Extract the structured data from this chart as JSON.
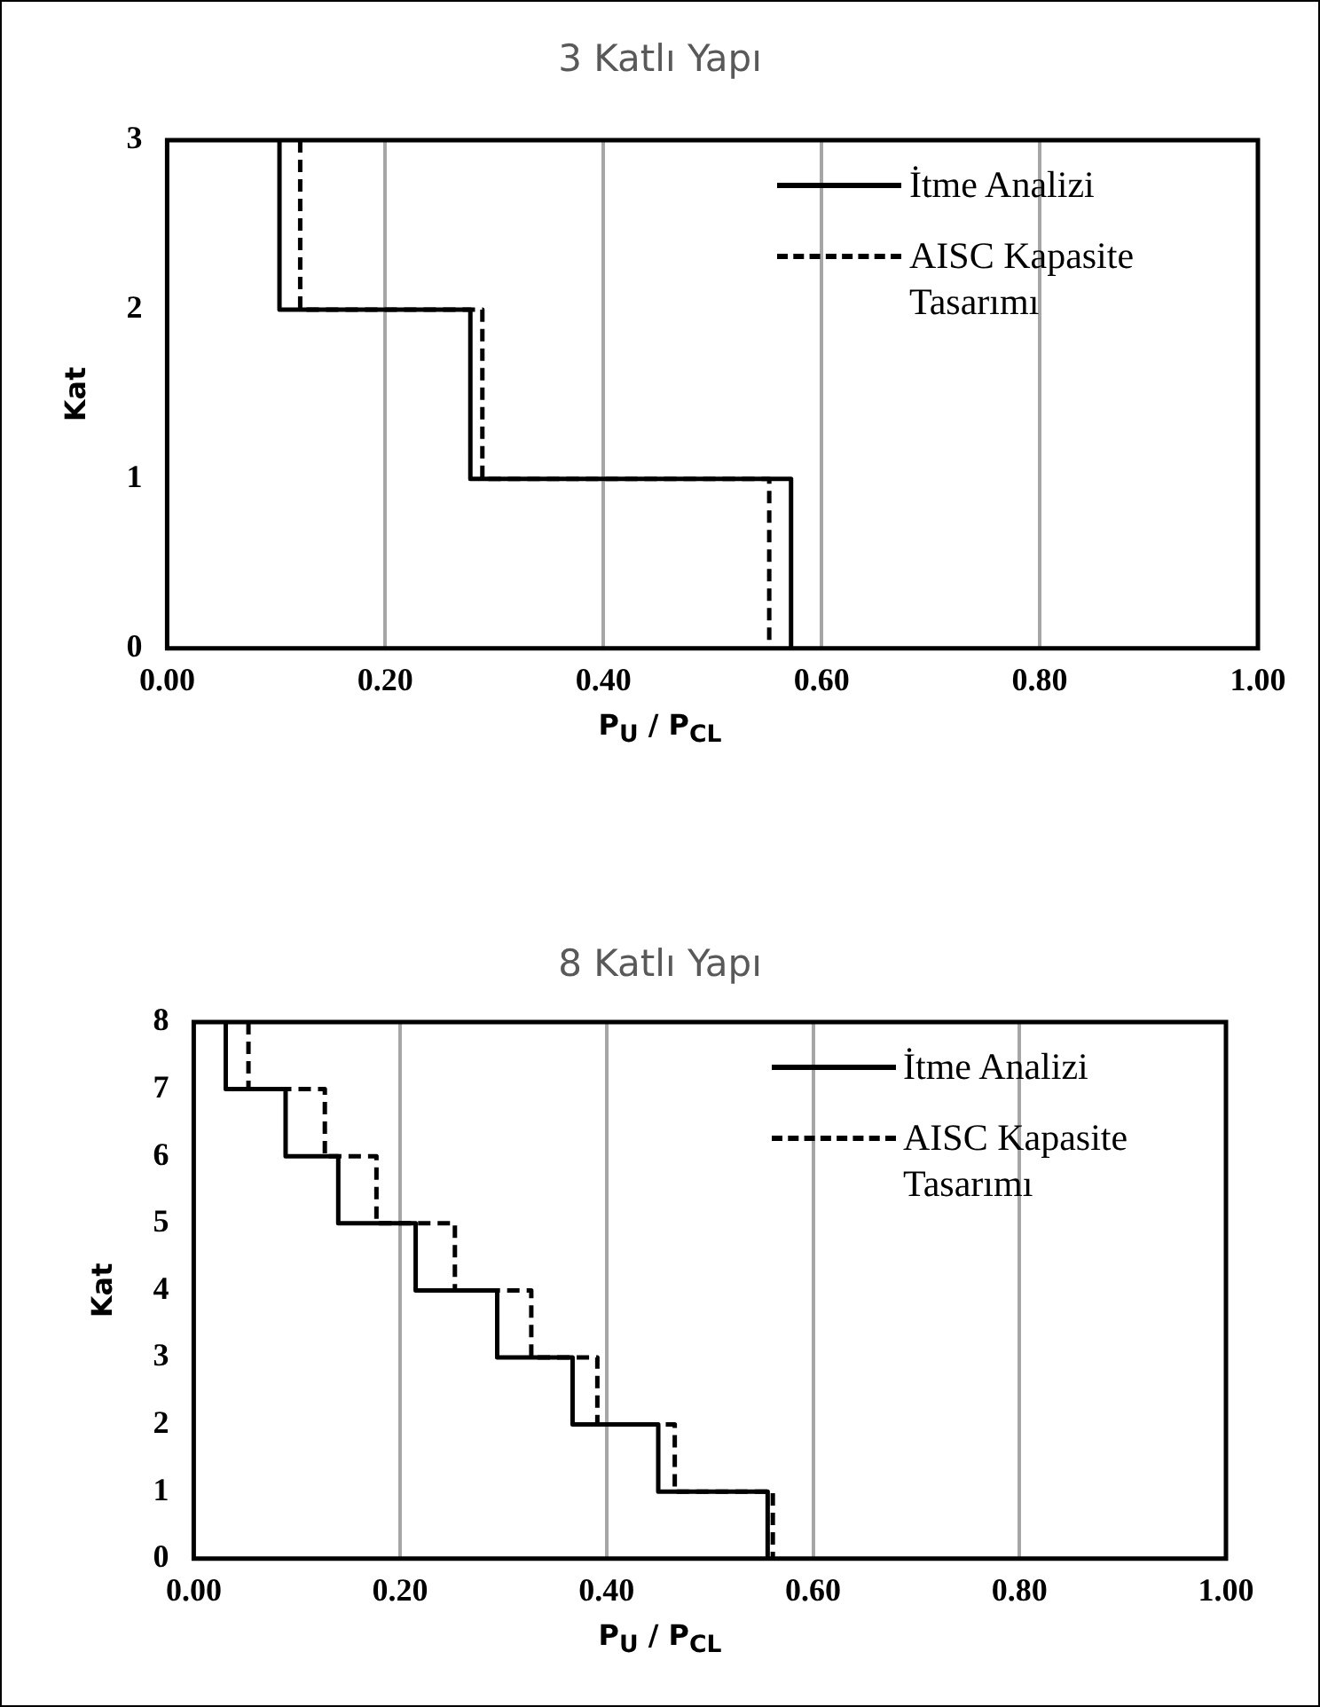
{
  "chart_data": [
    {
      "type": "line",
      "title": "3 Katlı Yapı",
      "xlabel": "P$_{U}$ / P$_{CL}$",
      "ylabel": "Kat",
      "xlim": [
        0,
        1
      ],
      "xticks": [
        {
          "value": 0,
          "label": "0.00"
        },
        {
          "value": 0.2,
          "label": "0.20"
        },
        {
          "value": 0.4,
          "label": "0.40"
        },
        {
          "value": 0.6,
          "label": "0.60"
        },
        {
          "value": 0.8,
          "label": "0.80"
        },
        {
          "value": 1,
          "label": "1.00"
        }
      ],
      "ylim": [
        0,
        3
      ],
      "yticks": [
        0,
        1,
        2,
        3
      ],
      "grid": "x",
      "legend": "top right",
      "marker": "none",
      "series": [
        {
          "name": "İtme Analizi",
          "color": "#000000",
          "line_style": "solid",
          "x": [
            0.103,
            0.103,
            0.278,
            0.278,
            0.572,
            0.572
          ],
          "values": [
            3,
            2,
            2,
            1,
            1,
            0
          ]
        },
        {
          "name": "AISC Kapasite Tasarımı",
          "color": "#000000",
          "line_style": "dashed",
          "x": [
            0.122,
            0.122,
            0.289,
            0.289,
            0.552,
            0.552
          ],
          "values": [
            3,
            2,
            2,
            1,
            1,
            0
          ]
        }
      ]
    },
    {
      "type": "line",
      "title": "8 Katlı Yapı",
      "xlabel": "P$_{U}$ / P$_{CL}$",
      "ylabel": "Kat",
      "xlim": [
        0,
        1
      ],
      "xticks": [
        {
          "value": 0,
          "label": "0.00"
        },
        {
          "value": 0.2,
          "label": "0.20"
        },
        {
          "value": 0.4,
          "label": "0.40"
        },
        {
          "value": 0.6,
          "label": "0.60"
        },
        {
          "value": 0.8,
          "label": "0.80"
        },
        {
          "value": 1,
          "label": "1.00"
        }
      ],
      "ylim": [
        0,
        8
      ],
      "yticks": [
        0,
        1,
        2,
        3,
        4,
        5,
        6,
        7,
        8
      ],
      "grid": "x",
      "legend": "top right",
      "marker": "none",
      "series": [
        {
          "name": "İtme Analizi",
          "color": "#000000",
          "line_style": "solid",
          "x": [
            0.031,
            0.031,
            0.089,
            0.089,
            0.14,
            0.14,
            0.215,
            0.215,
            0.294,
            0.294,
            0.367,
            0.367,
            0.45,
            0.45,
            0.556,
            0.556
          ],
          "values": [
            8,
            7,
            7,
            6,
            6,
            5,
            5,
            4,
            4,
            3,
            3,
            2,
            2,
            1,
            1,
            0
          ]
        },
        {
          "name": "AISC Kapasite Tasarımı",
          "color": "#000000",
          "line_style": "dashed",
          "x": [
            0.053,
            0.053,
            0.127,
            0.127,
            0.177,
            0.177,
            0.253,
            0.253,
            0.327,
            0.327,
            0.391,
            0.391,
            0.466,
            0.466,
            0.561,
            0.561
          ],
          "values": [
            8,
            7,
            7,
            6,
            6,
            5,
            5,
            4,
            4,
            3,
            3,
            2,
            2,
            1,
            1,
            0
          ]
        }
      ]
    }
  ]
}
